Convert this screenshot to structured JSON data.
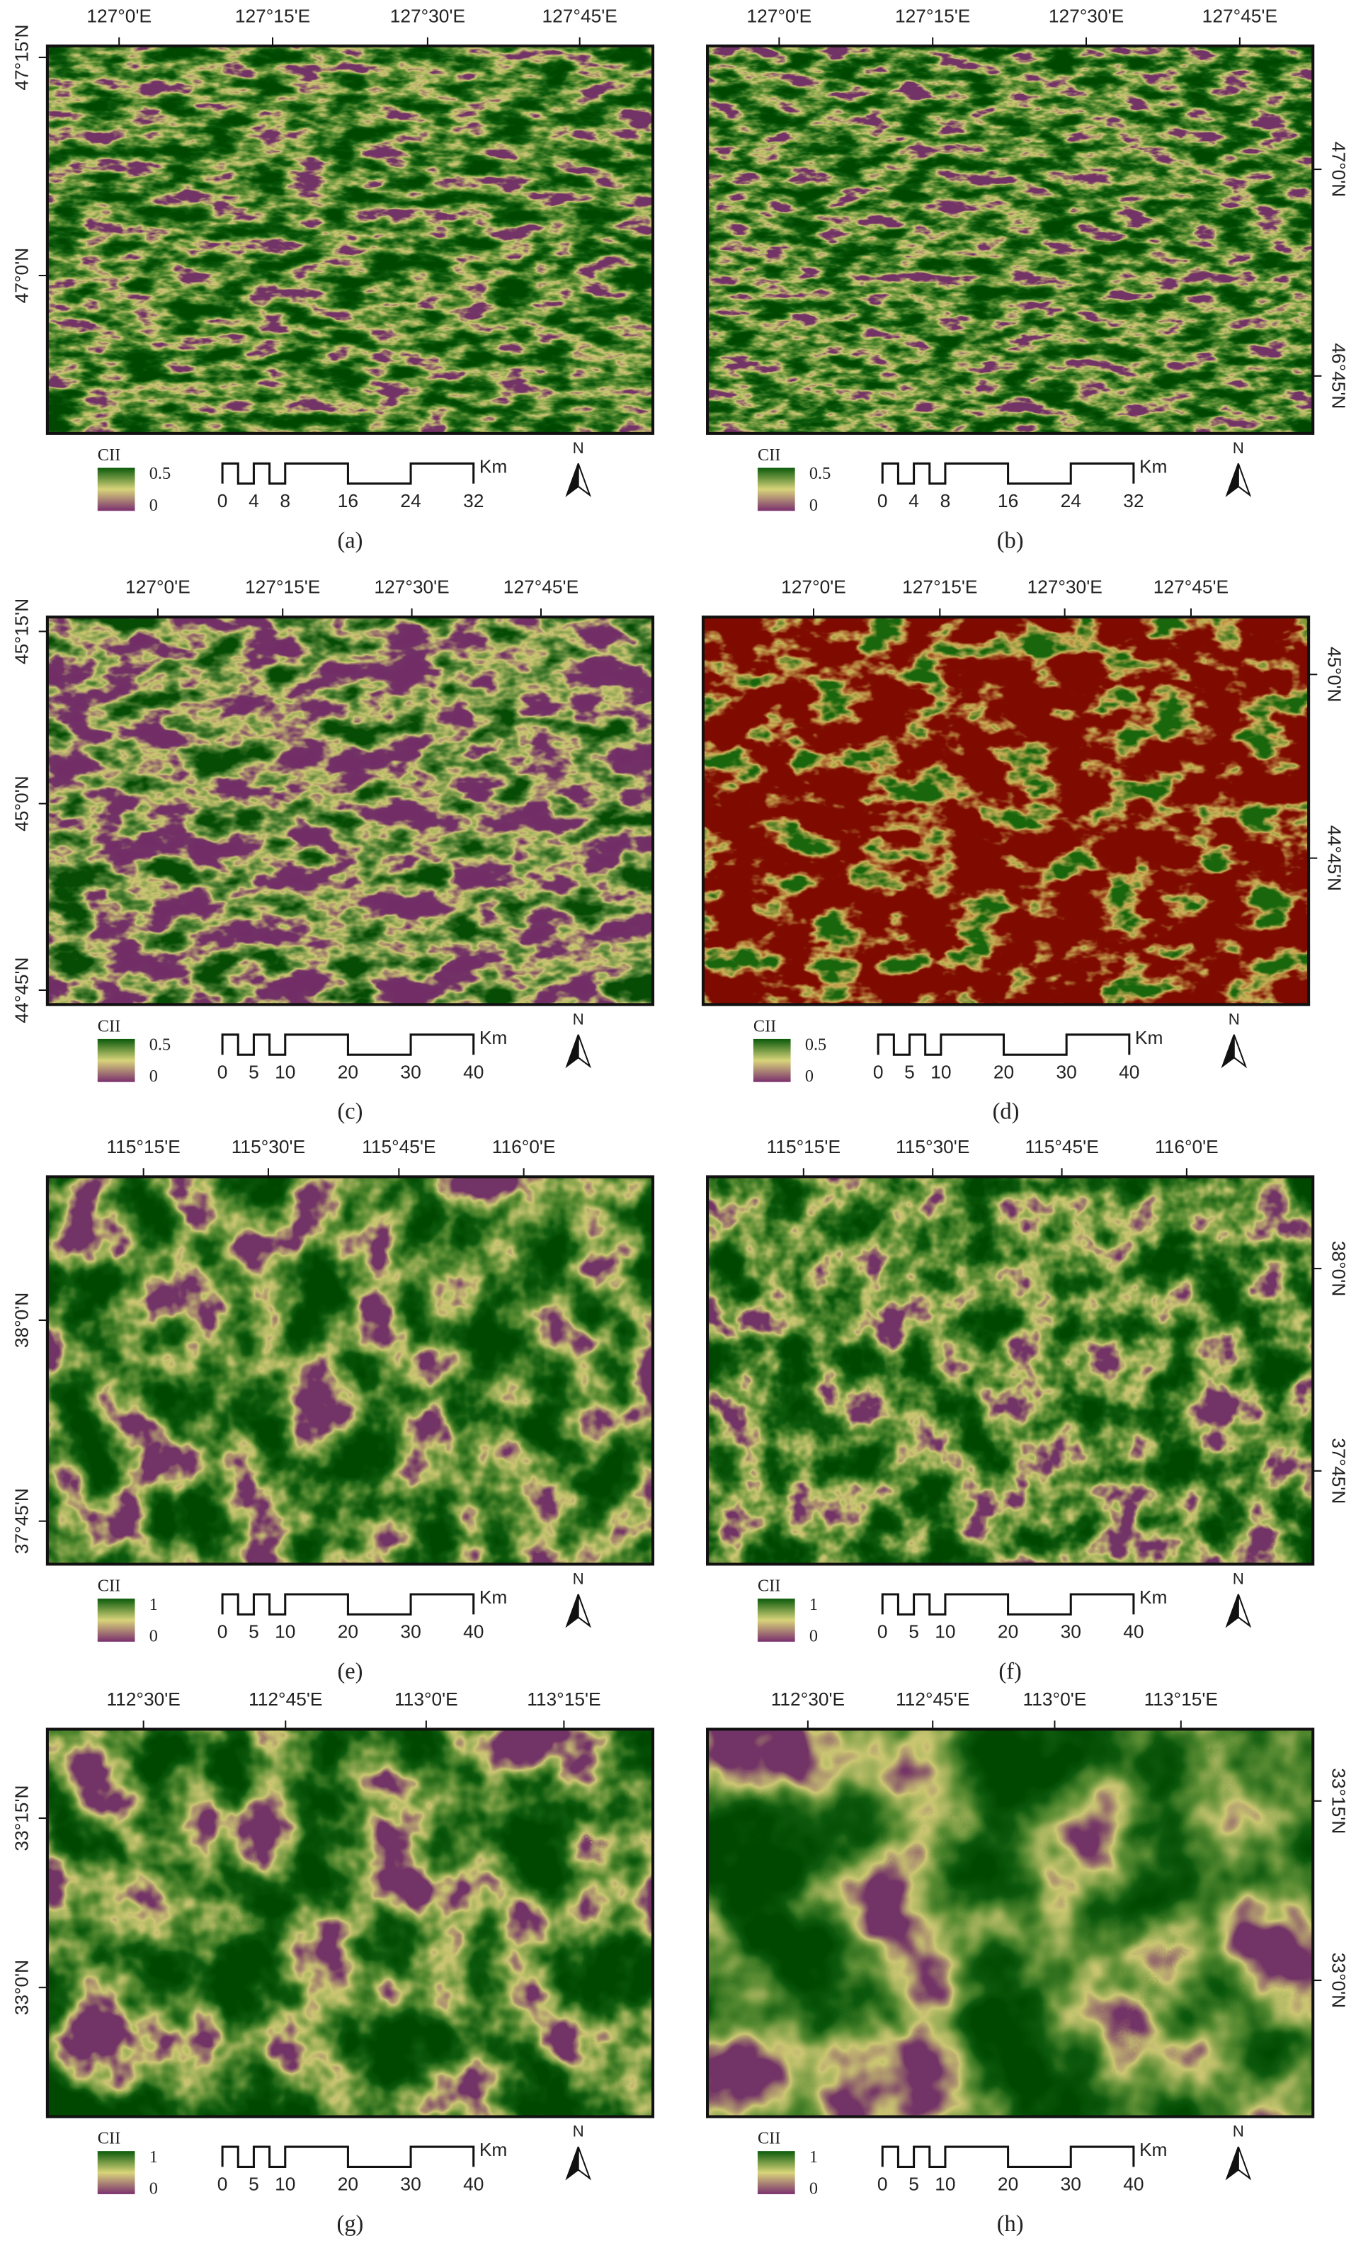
{
  "panels": [
    {
      "label": "(a)",
      "top_ticks": [
        "127°0'E",
        "127°15'E",
        "127°30'E",
        "127°45'E"
      ],
      "side_ticks": [
        "47°15'N",
        "47°0'N"
      ],
      "legend": {
        "title": "CII",
        "max": "0.5",
        "min": "0"
      },
      "scale_bar": {
        "labels": [
          "0",
          "4",
          "8",
          "16",
          "24",
          "32"
        ],
        "unit": "Km"
      },
      "north": "N"
    },
    {
      "label": "(b)",
      "top_ticks": [
        "127°0'E",
        "127°15'E",
        "127°30'E",
        "127°45'E"
      ],
      "side_ticks": [
        "47°0'N",
        "46°45'N"
      ],
      "legend": {
        "title": "CII",
        "max": "0.5",
        "min": "0"
      },
      "scale_bar": {
        "labels": [
          "0",
          "4",
          "8",
          "16",
          "24",
          "32"
        ],
        "unit": "Km"
      },
      "north": "N"
    },
    {
      "label": "(c)",
      "top_ticks": [
        "127°0'E",
        "127°15'E",
        "127°30'E",
        "127°45'E"
      ],
      "side_ticks": [
        "45°15'N",
        "45°0'N",
        "44°45'N"
      ],
      "legend": {
        "title": "CII",
        "max": "0.5",
        "min": "0"
      },
      "scale_bar": {
        "labels": [
          "0",
          "5",
          "10",
          "20",
          "30",
          "40"
        ],
        "unit": "Km"
      },
      "north": "N"
    },
    {
      "label": "(d)",
      "top_ticks": [
        "127°0'E",
        "127°15'E",
        "127°30'E",
        "127°45'E"
      ],
      "side_ticks": [
        "45°0'N",
        "44°45'N"
      ],
      "legend": {
        "title": "CII",
        "max": "0.5",
        "min": "0"
      },
      "scale_bar": {
        "labels": [
          "0",
          "5",
          "10",
          "20",
          "30",
          "40"
        ],
        "unit": "Km"
      },
      "north": "N"
    },
    {
      "label": "(e)",
      "top_ticks": [
        "115°15'E",
        "115°30'E",
        "115°45'E",
        "116°0'E"
      ],
      "side_ticks": [
        "38°0'N",
        "37°45'N"
      ],
      "legend": {
        "title": "CII",
        "max": "1",
        "min": "0"
      },
      "scale_bar": {
        "labels": [
          "0",
          "5",
          "10",
          "20",
          "30",
          "40"
        ],
        "unit": "Km"
      },
      "north": "N"
    },
    {
      "label": "(f)",
      "top_ticks": [
        "115°15'E",
        "115°30'E",
        "115°45'E",
        "116°0'E"
      ],
      "side_ticks": [
        "38°0'N",
        "37°45'N"
      ],
      "legend": {
        "title": "CII",
        "max": "1",
        "min": "0"
      },
      "scale_bar": {
        "labels": [
          "0",
          "5",
          "10",
          "20",
          "30",
          "40"
        ],
        "unit": "Km"
      },
      "north": "N"
    },
    {
      "label": "(g)",
      "top_ticks": [
        "112°30'E",
        "112°45'E",
        "113°0'E",
        "113°15'E"
      ],
      "side_ticks": [
        "33°15'N",
        "33°0'N"
      ],
      "legend": {
        "title": "CII",
        "max": "1",
        "min": "0"
      },
      "scale_bar": {
        "labels": [
          "0",
          "5",
          "10",
          "20",
          "30",
          "40"
        ],
        "unit": "Km"
      },
      "north": "N"
    },
    {
      "label": "(h)",
      "top_ticks": [
        "112°30'E",
        "112°45'E",
        "113°0'E",
        "113°15'E"
      ],
      "side_ticks": [
        "33°15'N",
        "33°0'N"
      ],
      "legend": {
        "title": "CII",
        "max": "1",
        "min": "0"
      },
      "scale_bar": {
        "labels": [
          "0",
          "5",
          "10",
          "20",
          "30",
          "40"
        ],
        "unit": "Km"
      },
      "north": "N"
    }
  ]
}
